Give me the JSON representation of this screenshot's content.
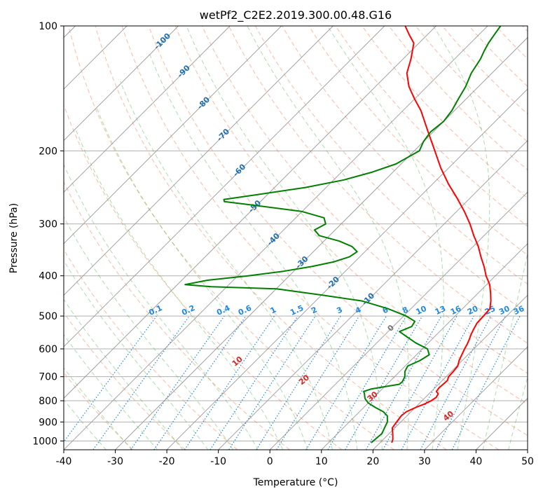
{
  "chart_data": {
    "type": "line",
    "title": "wetPf2_C2E2.2019.300.00.48.G16",
    "xlabel": "Temperature (°C)",
    "ylabel": "Pressure (hPa)",
    "xlim": [
      -40,
      50
    ],
    "ylim": [
      1050,
      100
    ],
    "y_scale": "log",
    "grid": true,
    "x_ticks": [
      -40,
      -30,
      -20,
      -10,
      0,
      10,
      20,
      30,
      40,
      50
    ],
    "y_ticks": [
      100,
      200,
      300,
      400,
      500,
      600,
      700,
      800,
      900,
      1000
    ],
    "colors": {
      "temperature": "#ff0000",
      "dewpoint": "#008000",
      "isotherm": "#999999",
      "dry_adiabat": "#ff6633",
      "moist_adiabat": "#33aa33",
      "mixing_ratio": "#1e88e5",
      "isotherm_label": "#1f6fb0",
      "dry_adiabat_label": "#d62728",
      "zero_label": "#777777"
    },
    "series": [
      {
        "key": "temperature",
        "pressure": [
          1010,
          990,
          960,
          930,
          900,
          870,
          850,
          830,
          815,
          800,
          785,
          770,
          760,
          745,
          730,
          715,
          700,
          680,
          660,
          640,
          620,
          600,
          585,
          570,
          555,
          540,
          520,
          500,
          480,
          460,
          440,
          420,
          400,
          380,
          360,
          340,
          320,
          300,
          280,
          260,
          240,
          220,
          200,
          180,
          160,
          150,
          140,
          130,
          120,
          110,
          105,
          100
        ],
        "temp": [
          22.3,
          21.8,
          20.7,
          19.5,
          19.2,
          18.9,
          19.1,
          20.1,
          21.1,
          21.8,
          22.1,
          21.8,
          21.0,
          20.8,
          20.9,
          21.0,
          20.5,
          20.4,
          20.2,
          19.4,
          18.8,
          18.2,
          17.8,
          17.3,
          16.7,
          16.2,
          15.6,
          15.5,
          15.3,
          14.0,
          12.4,
          10.6,
          8.2,
          6.0,
          3.5,
          1.0,
          -2.0,
          -5.0,
          -8.5,
          -12.5,
          -17.0,
          -21.5,
          -26.0,
          -31.0,
          -36.5,
          -40.0,
          -43.5,
          -46.5,
          -48.5,
          -51.0,
          -53.5,
          -56.0
        ]
      },
      {
        "key": "dewpoint",
        "pressure": [
          1010,
          990,
          960,
          930,
          900,
          870,
          850,
          830,
          810,
          790,
          770,
          760,
          750,
          740,
          730,
          720,
          700,
          680,
          660,
          640,
          620,
          600,
          580,
          560,
          545,
          530,
          515,
          500,
          480,
          460,
          445,
          430,
          425,
          420,
          410,
          400,
          390,
          380,
          370,
          360,
          350,
          340,
          330,
          320,
          310,
          300,
          290,
          280,
          270,
          265,
          262,
          255,
          245,
          235,
          225,
          215,
          200,
          190,
          180,
          170,
          160,
          150,
          140,
          130,
          120,
          115,
          110,
          105,
          100
        ],
        "temp": [
          18.3,
          18.4,
          18.6,
          18.0,
          17.4,
          16.2,
          14.6,
          12.2,
          10.0,
          8.5,
          7.5,
          6.9,
          7.8,
          10.0,
          12.4,
          12.5,
          12.0,
          11.0,
          10.5,
          11.8,
          12.5,
          11.0,
          7.5,
          4.5,
          2.2,
          3.6,
          3.2,
          0.5,
          -4.5,
          -11.0,
          -20.0,
          -30.0,
          -43.0,
          -48.5,
          -45.0,
          -38.0,
          -32.0,
          -27.5,
          -24.0,
          -22.0,
          -21.5,
          -23.5,
          -27.0,
          -32.0,
          -34.0,
          -33.0,
          -34.5,
          -40.0,
          -51.0,
          -57.0,
          -57.5,
          -52.0,
          -44.0,
          -38.0,
          -34.0,
          -31.0,
          -29.0,
          -30.0,
          -30.5,
          -30.0,
          -30.5,
          -31.5,
          -32.5,
          -34.0,
          -35.0,
          -35.8,
          -36.5,
          -37.0,
          -37.5
        ]
      }
    ],
    "isotherm_labels": [
      "-100",
      "-90",
      "-80",
      "-70",
      "-60",
      "-50",
      "-40",
      "-30",
      "-20",
      "-10",
      "0"
    ],
    "dry_adiabat_labels": [
      "10",
      "20",
      "30",
      "40"
    ],
    "mixing_ratio_labels": [
      "0.1",
      "0.2",
      "0.4",
      "0.6",
      "1",
      "1.5",
      "2",
      "3",
      "4",
      "6",
      "8",
      "10",
      "13",
      "16",
      "20",
      "25",
      "30",
      "36"
    ]
  }
}
